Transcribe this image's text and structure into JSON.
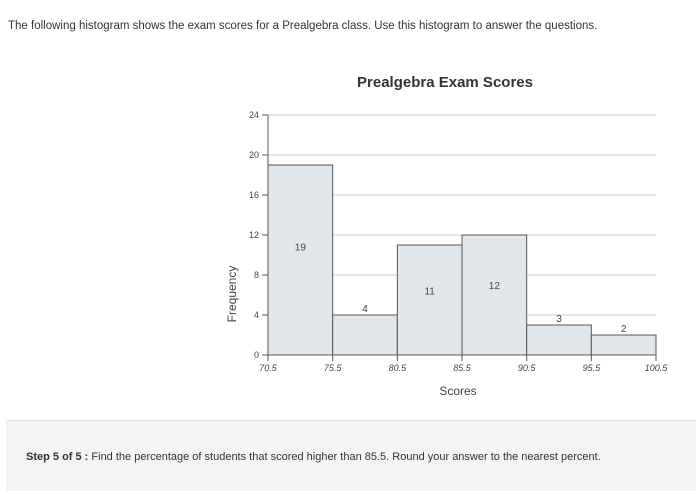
{
  "question": "The following histogram shows the exam scores for a Prealgebra class. Use this histogram to answer the questions.",
  "step": {
    "prefix": "Step 5 of 5 :",
    "text": " Find the percentage of students that scored higher than 85.5. Round your answer to the nearest percent."
  },
  "chart_data": {
    "type": "bar",
    "title": "Prealgebra Exam Scores",
    "xlabel": "Scores",
    "ylabel": "Frequency",
    "bin_edges": [
      70.5,
      75.5,
      80.5,
      85.5,
      90.5,
      95.5,
      100.5
    ],
    "bin_edge_labels": [
      "70.5",
      "75.5",
      "80.5",
      "85.5",
      "90.5",
      "95.5",
      "100.5"
    ],
    "values": [
      19,
      4,
      11,
      12,
      3,
      2
    ],
    "value_labels": [
      "19",
      "4",
      "11",
      "12",
      "3",
      "2"
    ],
    "y_ticks": [
      0,
      4,
      8,
      12,
      16,
      20,
      24
    ],
    "y_tick_labels": [
      "0",
      "4",
      "8",
      "12",
      "16",
      "20",
      "24"
    ],
    "ylim": [
      0,
      24
    ],
    "grid": true,
    "bar_color": "#e3e7ea",
    "bar_edge_color": "#555555"
  }
}
